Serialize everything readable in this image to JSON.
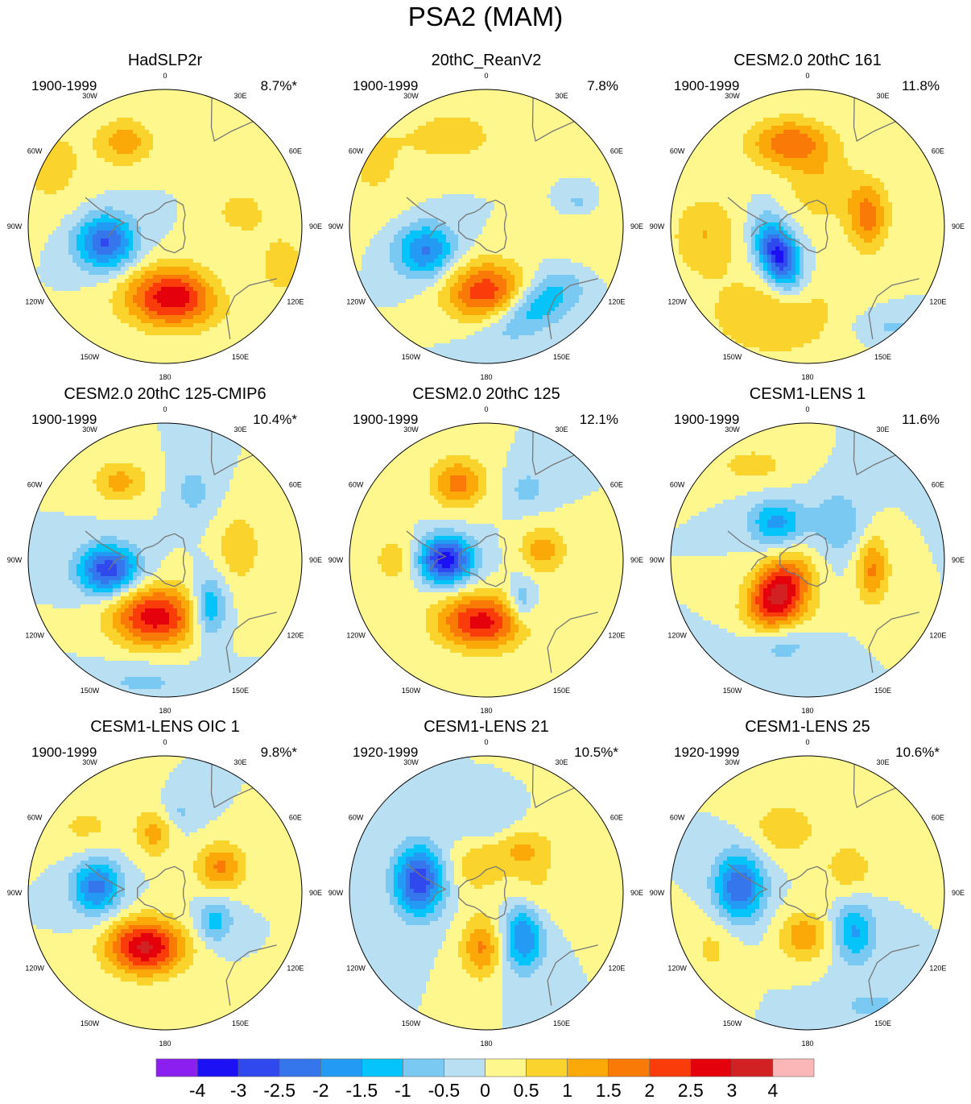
{
  "title": "PSA2 (MAM)",
  "chart_data": {
    "type": "heatmap",
    "projection": "polar stereographic, Southern Hemisphere",
    "title": "PSA2 (MAM)",
    "longitude_labels": [
      "0",
      "30E",
      "60E",
      "90E",
      "120E",
      "150E",
      "180",
      "150W",
      "120W",
      "90W",
      "60W",
      "30W"
    ],
    "colorbar": {
      "labels": [
        "-4",
        "-3",
        "-2.5",
        "-2",
        "-1.5",
        "-1",
        "-0.5",
        "0",
        "0.5",
        "1",
        "1.5",
        "2",
        "2.5",
        "3",
        "4"
      ],
      "colors": [
        "#8a1ff0",
        "#1c10f5",
        "#2f49ee",
        "#3576ec",
        "#239bf4",
        "#05c4fa",
        "#79c9f2",
        "#b9dff2",
        "#fdf78e",
        "#fad32c",
        "#faa908",
        "#fa7a08",
        "#fa3b0a",
        "#e4010b",
        "#d22122",
        "#fbb6b8"
      ]
    },
    "panels": [
      {
        "name": "HadSLP2r",
        "period": "1900-1999",
        "percent": "8.7%*",
        "blobs": [
          {
            "lon": 172,
            "r": 0.52,
            "v": 3.0,
            "rx": 0.36,
            "ry": 0.22,
            "rot": 0
          },
          {
            "lon": -105,
            "r": 0.45,
            "v": -2.6,
            "rx": 0.22,
            "ry": 0.2,
            "rot": 0
          },
          {
            "lon": -25,
            "r": 0.68,
            "v": 1.3,
            "rx": 0.2,
            "ry": 0.17,
            "rot": 0
          },
          {
            "lon": 78,
            "r": 0.55,
            "v": 0.7,
            "rx": 0.18,
            "ry": 0.16,
            "rot": 0
          },
          {
            "lon": -62,
            "r": 0.95,
            "v": 0.7,
            "rx": 0.3,
            "ry": 0.35,
            "rot": 0
          },
          {
            "lon": 108,
            "r": 0.9,
            "v": 0.6,
            "rx": 0.3,
            "ry": 0.4,
            "rot": 0
          },
          {
            "lon": 140,
            "r": 0.6,
            "v": -0.6,
            "rx": 0.25,
            "ry": 0.2,
            "rot": 0
          }
        ]
      },
      {
        "name": "20thC_ReanV2",
        "period": "1900-1999",
        "percent": "7.8%",
        "blobs": [
          {
            "lon": 180,
            "r": 0.48,
            "v": 2.4,
            "rx": 0.3,
            "ry": 0.22,
            "rot": 0
          },
          {
            "lon": -112,
            "r": 0.48,
            "v": -2.1,
            "rx": 0.22,
            "ry": 0.2,
            "rot": 0
          },
          {
            "lon": 148,
            "r": 0.68,
            "v": -1.6,
            "rx": 0.4,
            "ry": 0.18,
            "rot": -30
          },
          {
            "lon": -20,
            "r": 0.7,
            "v": 0.9,
            "rx": 0.3,
            "ry": 0.18,
            "rot": 0
          },
          {
            "lon": 75,
            "r": 0.7,
            "v": -0.7,
            "rx": 0.12,
            "ry": 0.1,
            "rot": 0
          },
          {
            "lon": -60,
            "r": 0.95,
            "v": 0.6,
            "rx": 0.3,
            "ry": 0.4,
            "rot": 0
          },
          {
            "lon": 100,
            "r": 0.8,
            "v": 0.5,
            "rx": 0.25,
            "ry": 0.3,
            "rot": 0
          }
        ]
      },
      {
        "name": "CESM2.0 20thC 161",
        "period": "1900-1999",
        "percent": "11.8%",
        "blobs": [
          {
            "lon": -135,
            "r": 0.3,
            "v": -3.3,
            "rx": 0.14,
            "ry": 0.25,
            "rot": -20
          },
          {
            "lon": -12,
            "r": 0.62,
            "v": 1.9,
            "rx": 0.3,
            "ry": 0.18,
            "rot": 0
          },
          {
            "lon": 80,
            "r": 0.45,
            "v": 1.7,
            "rx": 0.15,
            "ry": 0.25,
            "rot": 0
          },
          {
            "lon": 20,
            "r": 0.3,
            "v": 0.9,
            "rx": 0.25,
            "ry": 0.25,
            "rot": 0
          },
          {
            "lon": -160,
            "r": 0.7,
            "v": 1.0,
            "rx": 0.5,
            "ry": 0.3,
            "rot": 0
          },
          {
            "lon": -95,
            "r": 0.75,
            "v": 1.0,
            "rx": 0.25,
            "ry": 0.3,
            "rot": 0
          },
          {
            "lon": 140,
            "r": 0.95,
            "v": -0.6,
            "rx": 0.3,
            "ry": 0.12,
            "rot": 0
          }
        ]
      },
      {
        "name": "CESM2.0 20thC 125-CMIP6",
        "period": "1900-1999",
        "percent": "10.4%*",
        "blobs": [
          {
            "lon": -170,
            "r": 0.42,
            "v": 2.8,
            "rx": 0.32,
            "ry": 0.22,
            "rot": 0
          },
          {
            "lon": -100,
            "r": 0.42,
            "v": -2.9,
            "rx": 0.22,
            "ry": 0.18,
            "rot": 0
          },
          {
            "lon": -30,
            "r": 0.66,
            "v": 1.2,
            "rx": 0.2,
            "ry": 0.15,
            "rot": 0
          },
          {
            "lon": 22,
            "r": 0.55,
            "v": -0.7,
            "rx": 0.15,
            "ry": 0.2,
            "rot": 0
          },
          {
            "lon": 80,
            "r": 0.55,
            "v": 1.0,
            "rx": 0.15,
            "ry": 0.25,
            "rot": 0
          },
          {
            "lon": 138,
            "r": 0.48,
            "v": -1.8,
            "rx": 0.12,
            "ry": 0.22,
            "rot": 0
          },
          {
            "lon": -170,
            "r": 0.9,
            "v": -0.6,
            "rx": 0.4,
            "ry": 0.15,
            "rot": 0
          }
        ]
      },
      {
        "name": "CESM2.0 20thC 125",
        "period": "1900-1999",
        "percent": "12.1%",
        "blobs": [
          {
            "lon": -175,
            "r": 0.45,
            "v": 2.7,
            "rx": 0.32,
            "ry": 0.2,
            "rot": 0
          },
          {
            "lon": -90,
            "r": 0.3,
            "v": -3.4,
            "rx": 0.2,
            "ry": 0.17,
            "rot": 0
          },
          {
            "lon": -20,
            "r": 0.6,
            "v": 1.7,
            "rx": 0.2,
            "ry": 0.18,
            "rot": 0
          },
          {
            "lon": 30,
            "r": 0.6,
            "v": -0.7,
            "rx": 0.15,
            "ry": 0.15,
            "rot": 0
          },
          {
            "lon": 80,
            "r": 0.42,
            "v": 1.3,
            "rx": 0.17,
            "ry": 0.17,
            "rot": 0
          },
          {
            "lon": 140,
            "r": 0.4,
            "v": -1.2,
            "rx": 0.1,
            "ry": 0.17,
            "rot": 0
          },
          {
            "lon": -90,
            "r": 0.65,
            "v": 0.8,
            "rx": 0.2,
            "ry": 0.2,
            "rot": 0
          }
        ]
      },
      {
        "name": "CESM1-LENS 1",
        "period": "1900-1999",
        "percent": "11.6%",
        "blobs": [
          {
            "lon": -140,
            "r": 0.33,
            "v": 3.3,
            "rx": 0.2,
            "ry": 0.28,
            "rot": 30
          },
          {
            "lon": -40,
            "r": 0.35,
            "v": -1.7,
            "rx": 0.2,
            "ry": 0.17,
            "rot": 0
          },
          {
            "lon": 40,
            "r": 0.35,
            "v": -0.9,
            "rx": 0.2,
            "ry": 0.25,
            "rot": 0
          },
          {
            "lon": 98,
            "r": 0.48,
            "v": 1.6,
            "rx": 0.12,
            "ry": 0.25,
            "rot": 0
          },
          {
            "lon": -30,
            "r": 0.8,
            "v": 0.7,
            "rx": 0.3,
            "ry": 0.15,
            "rot": 0
          },
          {
            "lon": -160,
            "r": 0.65,
            "v": -0.9,
            "rx": 0.3,
            "ry": 0.15,
            "rot": 0
          },
          {
            "lon": 175,
            "r": 0.45,
            "v": 0.2,
            "rx": 0.2,
            "ry": 0.2,
            "rot": 0
          }
        ]
      },
      {
        "name": "CESM1-LENS OIC 1",
        "period": "1900-1999",
        "percent": "9.8%*",
        "blobs": [
          {
            "lon": -160,
            "r": 0.42,
            "v": 3.1,
            "rx": 0.28,
            "ry": 0.2,
            "rot": 0
          },
          {
            "lon": -85,
            "r": 0.5,
            "v": -2.2,
            "rx": 0.18,
            "ry": 0.2,
            "rot": 0
          },
          {
            "lon": -10,
            "r": 0.45,
            "v": 1.2,
            "rx": 0.13,
            "ry": 0.18,
            "rot": 0
          },
          {
            "lon": 65,
            "r": 0.45,
            "v": 1.6,
            "rx": 0.18,
            "ry": 0.17,
            "rot": 0
          },
          {
            "lon": 120,
            "r": 0.42,
            "v": -1.3,
            "rx": 0.13,
            "ry": 0.15,
            "rot": 0
          },
          {
            "lon": 10,
            "r": 0.6,
            "v": -0.6,
            "rx": 0.15,
            "ry": 0.12,
            "rot": 0
          },
          {
            "lon": -50,
            "r": 0.75,
            "v": 0.6,
            "rx": 0.3,
            "ry": 0.2,
            "rot": 0
          }
        ]
      },
      {
        "name": "CESM1-LENS 21",
        "period": "1920-1999",
        "percent": "10.5%*",
        "blobs": [
          {
            "lon": -80,
            "r": 0.5,
            "v": -2.9,
            "rx": 0.18,
            "ry": 0.25,
            "rot": 0
          },
          {
            "lon": -175,
            "r": 0.4,
            "v": 1.6,
            "rx": 0.15,
            "ry": 0.22,
            "rot": 0
          },
          {
            "lon": 140,
            "r": 0.42,
            "v": -2.1,
            "rx": 0.15,
            "ry": 0.25,
            "rot": 0
          },
          {
            "lon": 40,
            "r": 0.42,
            "v": 1.0,
            "rx": 0.22,
            "ry": 0.17,
            "rot": 0
          },
          {
            "lon": 0,
            "r": 0.5,
            "v": -0.6,
            "rx": 0.25,
            "ry": 0.12,
            "rot": 0
          },
          {
            "lon": -20,
            "r": 0.2,
            "v": 0.8,
            "rx": 0.2,
            "ry": 0.2,
            "rot": 0
          },
          {
            "lon": 90,
            "r": 0.35,
            "v": 0.6,
            "rx": 0.2,
            "ry": 0.25,
            "rot": 0
          }
        ]
      },
      {
        "name": "CESM1-LENS 25",
        "period": "1920-1999",
        "percent": "10.6%*",
        "blobs": [
          {
            "lon": -85,
            "r": 0.5,
            "v": -2.5,
            "rx": 0.18,
            "ry": 0.25,
            "rot": 0
          },
          {
            "lon": -175,
            "r": 0.32,
            "v": 1.4,
            "rx": 0.18,
            "ry": 0.18,
            "rot": 0
          },
          {
            "lon": 130,
            "r": 0.45,
            "v": -1.6,
            "rx": 0.15,
            "ry": 0.22,
            "rot": 0
          },
          {
            "lon": -20,
            "r": 0.5,
            "v": 0.9,
            "rx": 0.25,
            "ry": 0.2,
            "rot": 0
          },
          {
            "lon": 60,
            "r": 0.35,
            "v": 0.8,
            "rx": 0.2,
            "ry": 0.2,
            "rot": 0
          },
          {
            "lon": 150,
            "r": 0.95,
            "v": -0.6,
            "rx": 0.35,
            "ry": 0.15,
            "rot": 0
          },
          {
            "lon": -120,
            "r": 0.8,
            "v": 0.6,
            "rx": 0.2,
            "ry": 0.25,
            "rot": 0
          }
        ]
      }
    ]
  }
}
